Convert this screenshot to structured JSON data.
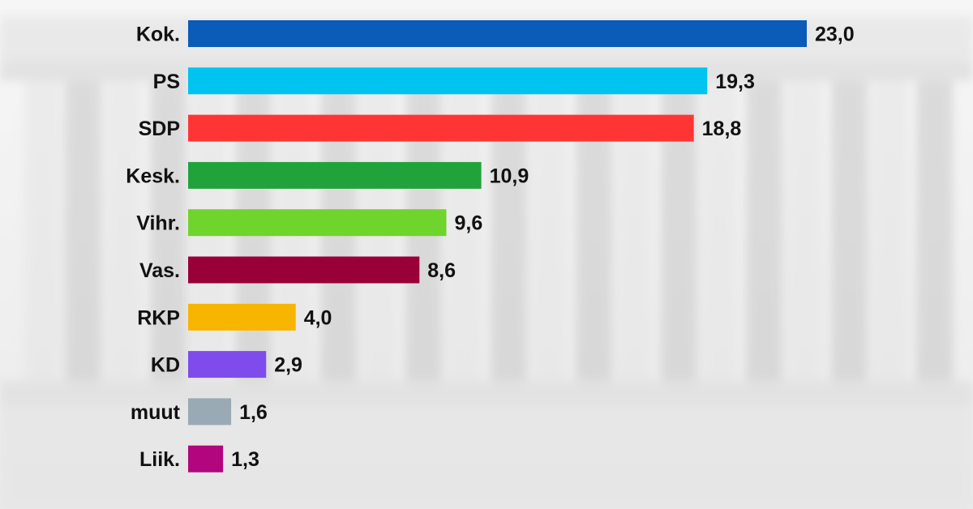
{
  "chart_data": {
    "type": "bar",
    "orientation": "horizontal",
    "title": "",
    "xlabel": "",
    "ylabel": "",
    "grid": false,
    "xlim": [
      0,
      23
    ],
    "categories": [
      "Kok.",
      "PS",
      "SDP",
      "Kesk.",
      "Vihr.",
      "Vas.",
      "RKP",
      "KD",
      "muut",
      "Liik."
    ],
    "values": [
      23.0,
      19.3,
      18.8,
      10.9,
      9.6,
      8.6,
      4.0,
      2.9,
      1.6,
      1.3
    ],
    "value_labels": [
      "23,0",
      "19,3",
      "18,8",
      "10,9",
      "9,6",
      "8,6",
      "4,0",
      "2,9",
      "1,6",
      "1,3"
    ],
    "colors": [
      "#0b5bb8",
      "#00c4f0",
      "#ff3535",
      "#21a33c",
      "#6fd42b",
      "#990038",
      "#f7b500",
      "#7f4bec",
      "#9aaab5",
      "#b1067e"
    ]
  }
}
